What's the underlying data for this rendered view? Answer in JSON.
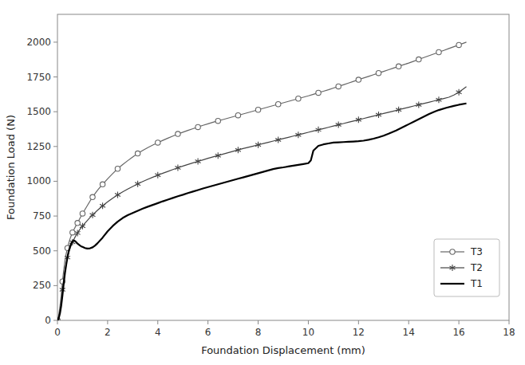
{
  "chart_data": {
    "type": "line",
    "xlabel": "Foundation Displacement (mm)",
    "ylabel": "Foundation Load (N)",
    "xlim": [
      0,
      18
    ],
    "ylim": [
      0,
      2200
    ],
    "xticks": [
      0,
      2,
      4,
      6,
      8,
      10,
      12,
      14,
      16,
      18
    ],
    "yticks": [
      0,
      250,
      500,
      750,
      1000,
      1250,
      1500,
      1750,
      2000
    ],
    "grid": false,
    "legend": "lower right",
    "series": [
      {
        "name": "T3",
        "color": "#666666",
        "marker": "circle",
        "line_style": "solid",
        "x": [
          0,
          0.05,
          0.1,
          0.15,
          0.2,
          0.25,
          0.3,
          0.35,
          0.4,
          0.45,
          0.5,
          0.55,
          0.6,
          0.65,
          0.7,
          0.75,
          0.8,
          0.85,
          0.9,
          0.95,
          1.0,
          1.1,
          1.2,
          1.3,
          1.4,
          1.5,
          1.6,
          1.7,
          1.8,
          1.9,
          2.0,
          2.2,
          2.4,
          2.6,
          2.8,
          3.0,
          3.2,
          3.4,
          3.6,
          3.8,
          4.0,
          4.2,
          4.4,
          4.6,
          4.8,
          5.0,
          5.2,
          5.4,
          5.6,
          5.8,
          6.0,
          6.2,
          6.4,
          6.6,
          6.8,
          7.0,
          7.2,
          7.4,
          7.6,
          7.8,
          8.0,
          8.2,
          8.4,
          8.6,
          8.8,
          9.0,
          9.2,
          9.4,
          9.6,
          9.8,
          10.0,
          10.2,
          10.4,
          10.6,
          10.8,
          11.0,
          11.2,
          11.4,
          11.6,
          11.8,
          12.0,
          12.2,
          12.4,
          12.6,
          12.8,
          13.0,
          13.2,
          13.4,
          13.6,
          13.8,
          14.0,
          14.2,
          14.4,
          14.6,
          14.8,
          15.0,
          15.2,
          15.4,
          15.6,
          15.8,
          16.0,
          16.3
        ],
        "values": [
          0,
          40,
          100,
          180,
          280,
          360,
          430,
          480,
          520,
          555,
          585,
          610,
          632,
          650,
          668,
          685,
          700,
          718,
          735,
          752,
          768,
          798,
          828,
          858,
          886,
          912,
          936,
          958,
          978,
          998,
          1018,
          1055,
          1090,
          1120,
          1148,
          1175,
          1200,
          1222,
          1242,
          1260,
          1278,
          1294,
          1310,
          1325,
          1340,
          1353,
          1366,
          1378,
          1390,
          1402,
          1413,
          1424,
          1434,
          1444,
          1454,
          1464,
          1474,
          1484,
          1494,
          1504,
          1514,
          1524,
          1534,
          1544,
          1554,
          1564,
          1574,
          1584,
          1594,
          1604,
          1614,
          1625,
          1636,
          1647,
          1658,
          1670,
          1682,
          1694,
          1706,
          1718,
          1730,
          1742,
          1754,
          1766,
          1778,
          1790,
          1802,
          1814,
          1826,
          1838,
          1850,
          1863,
          1876,
          1889,
          1902,
          1915,
          1928,
          1941,
          1954,
          1967,
          1980,
          2000
        ]
      },
      {
        "name": "T2",
        "color": "#444444",
        "marker": "asterisk",
        "line_style": "solid",
        "x": [
          0,
          0.05,
          0.1,
          0.15,
          0.2,
          0.25,
          0.3,
          0.35,
          0.4,
          0.45,
          0.5,
          0.55,
          0.6,
          0.65,
          0.7,
          0.75,
          0.8,
          0.85,
          0.9,
          0.95,
          1.0,
          1.1,
          1.2,
          1.3,
          1.4,
          1.5,
          1.6,
          1.7,
          1.8,
          1.9,
          2.0,
          2.2,
          2.4,
          2.6,
          2.8,
          3.0,
          3.2,
          3.4,
          3.6,
          3.8,
          4.0,
          4.2,
          4.4,
          4.6,
          4.8,
          5.0,
          5.2,
          5.4,
          5.6,
          5.8,
          6.0,
          6.2,
          6.4,
          6.6,
          6.8,
          7.0,
          7.2,
          7.4,
          7.6,
          7.8,
          8.0,
          8.2,
          8.4,
          8.6,
          8.8,
          9.0,
          9.2,
          9.4,
          9.6,
          9.8,
          10.0,
          10.2,
          10.4,
          10.6,
          10.8,
          11.0,
          11.2,
          11.4,
          11.6,
          11.8,
          12.0,
          12.2,
          12.4,
          12.6,
          12.8,
          13.0,
          13.2,
          13.4,
          13.6,
          13.8,
          14.0,
          14.2,
          14.4,
          14.6,
          14.8,
          15.0,
          15.2,
          15.4,
          15.6,
          15.8,
          16.0,
          16.3
        ],
        "values": [
          0,
          25,
          65,
          130,
          220,
          300,
          360,
          410,
          452,
          485,
          515,
          540,
          562,
          580,
          598,
          614,
          628,
          642,
          655,
          667,
          678,
          700,
          720,
          740,
          758,
          775,
          792,
          808,
          823,
          838,
          852,
          878,
          902,
          924,
          944,
          963,
          981,
          998,
          1014,
          1029,
          1044,
          1058,
          1071,
          1084,
          1097,
          1109,
          1121,
          1132,
          1143,
          1154,
          1165,
          1175,
          1185,
          1195,
          1205,
          1215,
          1225,
          1235,
          1244,
          1253,
          1262,
          1271,
          1280,
          1289,
          1298,
          1307,
          1316,
          1325,
          1334,
          1343,
          1352,
          1361,
          1370,
          1379,
          1388,
          1397,
          1406,
          1415,
          1424,
          1433,
          1442,
          1451,
          1460,
          1469,
          1478,
          1487,
          1496,
          1505,
          1514,
          1523,
          1532,
          1541,
          1550,
          1559,
          1568,
          1577,
          1586,
          1595,
          1604,
          1620,
          1640,
          1680
        ]
      },
      {
        "name": "T1",
        "color": "#000000",
        "marker": "none",
        "line_style": "solid",
        "x": [
          0,
          0.05,
          0.1,
          0.15,
          0.2,
          0.25,
          0.3,
          0.35,
          0.4,
          0.45,
          0.5,
          0.55,
          0.6,
          0.65,
          0.7,
          0.75,
          0.8,
          0.85,
          0.9,
          0.95,
          1.0,
          1.05,
          1.1,
          1.15,
          1.2,
          1.3,
          1.4,
          1.5,
          1.6,
          1.8,
          2.0,
          2.2,
          2.4,
          2.6,
          2.8,
          3.0,
          3.2,
          3.4,
          3.6,
          3.8,
          4.0,
          4.2,
          4.4,
          4.6,
          4.8,
          5.0,
          5.2,
          5.4,
          5.6,
          5.8,
          6.0,
          6.2,
          6.4,
          6.6,
          6.8,
          7.0,
          7.2,
          7.4,
          7.6,
          7.8,
          8.0,
          8.2,
          8.4,
          8.6,
          8.8,
          9.0,
          9.1,
          9.2,
          9.4,
          9.6,
          9.8,
          10.0,
          10.1,
          10.2,
          10.4,
          10.6,
          10.8,
          11.0,
          11.2,
          11.4,
          11.6,
          11.8,
          12.0,
          12.2,
          12.4,
          12.6,
          12.8,
          13.0,
          13.2,
          13.5,
          13.8,
          14.0,
          14.2,
          14.5,
          14.8,
          15.0,
          15.2,
          15.5,
          15.8,
          16.0,
          16.3
        ],
        "values": [
          0,
          15,
          50,
          105,
          180,
          265,
          340,
          400,
          455,
          498,
          530,
          552,
          568,
          575,
          570,
          562,
          552,
          545,
          538,
          532,
          528,
          524,
          520,
          518,
          516,
          518,
          525,
          538,
          555,
          595,
          640,
          678,
          710,
          736,
          756,
          772,
          788,
          803,
          817,
          830,
          843,
          856,
          868,
          880,
          892,
          903,
          915,
          926,
          937,
          948,
          958,
          968,
          978,
          988,
          998,
          1008,
          1018,
          1028,
          1038,
          1048,
          1058,
          1068,
          1078,
          1088,
          1095,
          1100,
          1103,
          1106,
          1112,
          1118,
          1124,
          1130,
          1150,
          1220,
          1255,
          1265,
          1272,
          1278,
          1280,
          1282,
          1284,
          1286,
          1288,
          1292,
          1298,
          1306,
          1316,
          1328,
          1342,
          1365,
          1392,
          1410,
          1428,
          1455,
          1482,
          1498,
          1512,
          1528,
          1542,
          1550,
          1560
        ]
      }
    ]
  }
}
